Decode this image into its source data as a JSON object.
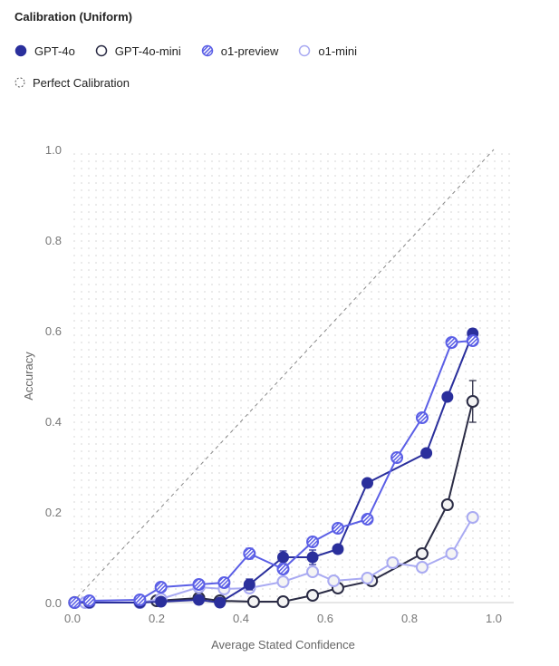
{
  "chart_data": {
    "type": "line",
    "title": "Calibration (Uniform)",
    "xlabel": "Average Stated Confidence",
    "ylabel": "Accuracy",
    "xlim": [
      0,
      1
    ],
    "ylim": [
      0,
      1
    ],
    "xticks": [
      "0.0",
      "0.2",
      "0.4",
      "0.6",
      "0.8",
      "1.0"
    ],
    "yticks": [
      "0.0",
      "0.2",
      "0.4",
      "0.6",
      "0.8",
      "1.0"
    ],
    "legend_position": "top-left",
    "reference": {
      "name": "Perfect Calibration",
      "color": "#888888"
    },
    "series": [
      {
        "name": "GPT-4o",
        "style": "filled",
        "color": "#2a2f9c",
        "x": [
          0.005,
          0.04,
          0.16,
          0.21,
          0.3,
          0.35,
          0.42,
          0.5,
          0.57,
          0.63,
          0.7,
          0.84,
          0.89,
          0.95
        ],
        "y": [
          0,
          0,
          0,
          0.002,
          0.006,
          0,
          0.04,
          0.1,
          0.1,
          0.118,
          0.264,
          0.33,
          0.454,
          0.594
        ],
        "err": [
          0,
          0,
          0,
          0,
          0,
          0,
          0.012,
          0.014,
          0.016,
          0,
          0,
          0,
          0,
          0.01
        ]
      },
      {
        "name": "GPT-4o-mini",
        "style": "open",
        "color": "#2b2c45",
        "x": [
          0.005,
          0.04,
          0.16,
          0.2,
          0.3,
          0.35,
          0.43,
          0.5,
          0.57,
          0.63,
          0.71,
          0.83,
          0.89,
          0.95
        ],
        "y": [
          0,
          0,
          0,
          0.004,
          0.01,
          0.004,
          0.002,
          0.002,
          0.016,
          0.032,
          0.048,
          0.108,
          0.216,
          0.444
        ],
        "err": [
          0,
          0,
          0,
          0,
          0,
          0,
          0,
          0,
          0,
          0,
          0,
          0,
          0,
          0.046
        ]
      },
      {
        "name": "o1-preview",
        "style": "hatched",
        "color": "#5b5fe6",
        "x": [
          0.005,
          0.04,
          0.16,
          0.21,
          0.3,
          0.36,
          0.42,
          0.5,
          0.57,
          0.63,
          0.7,
          0.77,
          0.83,
          0.9,
          0.95
        ],
        "y": [
          0,
          0.004,
          0.006,
          0.034,
          0.04,
          0.044,
          0.108,
          0.074,
          0.134,
          0.164,
          0.184,
          0.32,
          0.408,
          0.574,
          0.578
        ],
        "err": [
          0,
          0,
          0,
          0,
          0,
          0.01,
          0.012,
          0,
          0.01,
          0,
          0,
          0,
          0,
          0,
          0
        ]
      },
      {
        "name": "o1-mini",
        "style": "light",
        "color": "#a9aaf2",
        "x": [
          0.03,
          0.04,
          0.16,
          0.21,
          0.3,
          0.36,
          0.42,
          0.5,
          0.57,
          0.62,
          0.7,
          0.76,
          0.83,
          0.9,
          0.95
        ],
        "y": [
          0,
          0,
          0,
          0.008,
          0.034,
          0.03,
          0.032,
          0.046,
          0.068,
          0.048,
          0.054,
          0.088,
          0.078,
          0.108,
          0.188
        ],
        "err": [
          0,
          0,
          0,
          0,
          0,
          0,
          0,
          0,
          0,
          0,
          0,
          0,
          0,
          0,
          0
        ]
      }
    ]
  }
}
